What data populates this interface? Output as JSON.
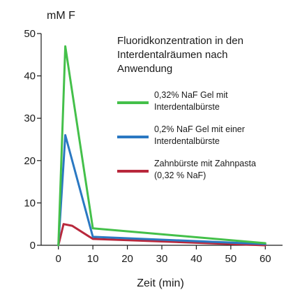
{
  "chart_data": {
    "type": "line",
    "ylabel": "mM F",
    "xlabel": "Zeit (min)",
    "legend_title_lines": [
      "Fluoridkonzentration in den",
      "Interdentalräumen nach",
      "Anwendung"
    ],
    "legend_placement": "top-right",
    "grid": false,
    "xlim": [
      -5,
      65
    ],
    "ylim": [
      0,
      50
    ],
    "x_ticks": [
      0,
      10,
      20,
      30,
      40,
      50,
      60
    ],
    "y_ticks": [
      0,
      10,
      20,
      30,
      40,
      50
    ],
    "series": [
      {
        "name_lines": [
          "0,32% NaF Gel mit",
          "Interdentalbürste"
        ],
        "color": "#44c04a",
        "x": [
          0,
          2,
          10,
          60
        ],
        "y": [
          0,
          47,
          4,
          0.5
        ]
      },
      {
        "name_lines": [
          "0,2% NaF Gel mit einer",
          "Interdentalbürste"
        ],
        "color": "#2a78c2",
        "x": [
          0,
          2,
          10,
          60
        ],
        "y": [
          0,
          26,
          2,
          0.3
        ]
      },
      {
        "name_lines": [
          "Zahnbürste mit Zahnpasta",
          "(0,32 % NaF)"
        ],
        "color": "#b8283c",
        "x": [
          0,
          1.5,
          4,
          10,
          60
        ],
        "y": [
          0,
          5,
          4.6,
          1.5,
          0
        ]
      }
    ]
  }
}
